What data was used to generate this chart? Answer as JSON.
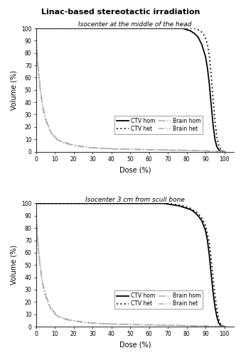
{
  "title": "Linac-based stereotactic irradiation",
  "subtitle1": "Isocenter at the middle of the head",
  "subtitle2": "Isocenter 3 cm from scull bone",
  "xlabel": "Dose (%)",
  "ylabel": "Volume (%)",
  "xlim": [
    0,
    105
  ],
  "ylim": [
    0,
    100
  ],
  "xticks": [
    0,
    10,
    20,
    30,
    40,
    50,
    60,
    70,
    80,
    90,
    100
  ],
  "yticks": [
    0,
    10,
    20,
    30,
    40,
    50,
    60,
    70,
    80,
    90,
    100
  ],
  "background_color": "#ffffff",
  "upper": {
    "ctv_hom_x": [
      0,
      78,
      79,
      80,
      82,
      84,
      86,
      88,
      90,
      91,
      92,
      93,
      94,
      95,
      96,
      97,
      98,
      99,
      100
    ],
    "ctv_hom_y": [
      100,
      100,
      99.5,
      99,
      98,
      96,
      93,
      87,
      77,
      68,
      55,
      38,
      22,
      10,
      4,
      1.5,
      0.5,
      0.1,
      0
    ],
    "ctv_het_x": [
      0,
      84,
      85,
      86,
      87,
      88,
      89,
      90,
      91,
      92,
      93,
      94,
      95,
      96,
      97,
      98,
      99,
      100,
      101
    ],
    "ctv_het_y": [
      100,
      100,
      99.5,
      99,
      98,
      97,
      95,
      92,
      87,
      78,
      62,
      43,
      25,
      12,
      5,
      2,
      0.5,
      0.1,
      0
    ],
    "brain_hom_x": [
      0,
      1,
      2,
      3,
      4,
      5,
      6,
      7,
      8,
      10,
      12,
      15,
      20,
      25,
      30,
      40,
      50,
      60,
      70,
      80,
      90,
      95,
      99,
      100
    ],
    "brain_hom_y": [
      92,
      68,
      52,
      40,
      32,
      26,
      22,
      18,
      15,
      11,
      9,
      7,
      5,
      3.8,
      3,
      2.2,
      1.8,
      1.5,
      1.2,
      1.0,
      0.6,
      0.3,
      0.05,
      0
    ],
    "brain_het_x": [
      0,
      1,
      2,
      3,
      4,
      5,
      6,
      7,
      8,
      10,
      12,
      15,
      20,
      25,
      30,
      40,
      50,
      60,
      70,
      80,
      90,
      95,
      100,
      101
    ],
    "brain_het_y": [
      92,
      70,
      55,
      43,
      34,
      28,
      23,
      19,
      16,
      12,
      9.5,
      7.5,
      5.5,
      4.2,
      3.2,
      2.4,
      2.0,
      1.7,
      1.4,
      1.1,
      0.7,
      0.3,
      0.05,
      0
    ]
  },
  "lower": {
    "ctv_hom_x": [
      0,
      68,
      70,
      72,
      74,
      76,
      78,
      80,
      82,
      84,
      86,
      88,
      90,
      91,
      92,
      93,
      94,
      95,
      96,
      97,
      98,
      99,
      100
    ],
    "ctv_hom_y": [
      100,
      100,
      99.5,
      99,
      98.5,
      98,
      97,
      96,
      95,
      93,
      90,
      86,
      78,
      70,
      58,
      42,
      28,
      16,
      8,
      3,
      1,
      0.2,
      0
    ],
    "ctv_het_x": [
      0,
      70,
      72,
      74,
      76,
      78,
      80,
      82,
      84,
      86,
      88,
      90,
      92,
      93,
      94,
      95,
      96,
      97,
      98,
      99,
      100,
      101
    ],
    "ctv_het_y": [
      100,
      100,
      99.5,
      99,
      98.5,
      98,
      97,
      96,
      94,
      92,
      88,
      82,
      68,
      55,
      40,
      26,
      14,
      6,
      2,
      0.5,
      0.1,
      0
    ],
    "brain_hom_x": [
      0,
      1,
      2,
      3,
      4,
      5,
      6,
      7,
      8,
      10,
      12,
      15,
      20,
      25,
      30,
      40,
      50,
      60,
      70,
      80,
      90,
      95,
      99,
      100
    ],
    "brain_hom_y": [
      92,
      65,
      50,
      38,
      30,
      25,
      20,
      17,
      14,
      10,
      8,
      6,
      4.5,
      3.5,
      2.8,
      2.0,
      1.6,
      1.3,
      1.0,
      0.8,
      0.5,
      0.2,
      0.03,
      0
    ],
    "brain_het_x": [
      0,
      1,
      2,
      3,
      4,
      5,
      6,
      7,
      8,
      10,
      12,
      15,
      20,
      25,
      30,
      40,
      50,
      60,
      70,
      80,
      90,
      95,
      100,
      101
    ],
    "brain_het_y": [
      92,
      68,
      52,
      40,
      32,
      27,
      22,
      18,
      15,
      11,
      8.5,
      6.5,
      5,
      3.8,
      3.0,
      2.2,
      1.8,
      1.5,
      1.2,
      0.9,
      0.5,
      0.2,
      0.03,
      0
    ]
  }
}
